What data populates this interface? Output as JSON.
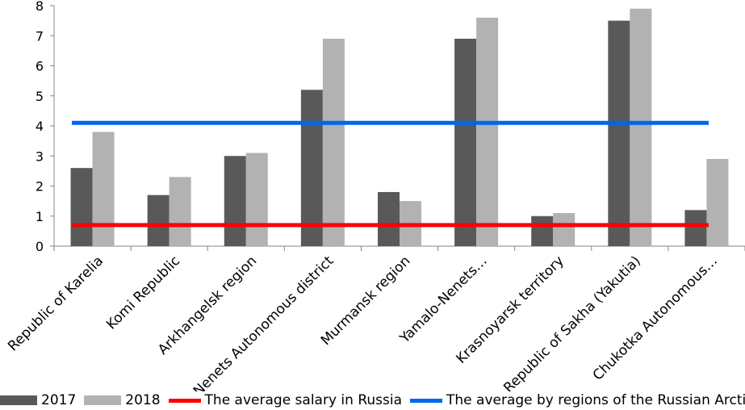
{
  "chart_data": {
    "type": "bar",
    "title": "",
    "xlabel": "",
    "ylabel": "",
    "ylim": [
      0,
      8
    ],
    "yticks": [
      0,
      1,
      2,
      3,
      4,
      5,
      6,
      7,
      8
    ],
    "grid": false,
    "categories": [
      "Republic of Karelia",
      "Komi Republic",
      "Arkhangelsk region",
      "Nenets Autonomous district",
      "Murmansk region",
      "Yamalo-Nenets…",
      "Krasnoyarsk territory",
      "Republic of Sakha (Yakutia)",
      "Chukotka Autonomous…"
    ],
    "series": [
      {
        "name": "2017",
        "color": "#595959",
        "values": [
          2.6,
          1.7,
          3.0,
          5.2,
          1.8,
          6.9,
          1.0,
          7.5,
          1.2
        ]
      },
      {
        "name": "2018",
        "color": "#b2b2b2",
        "values": [
          3.8,
          2.3,
          3.1,
          6.9,
          1.5,
          7.6,
          1.1,
          7.9,
          2.9
        ]
      }
    ],
    "lines": [
      {
        "name": "The average salary in Russia",
        "color": "#ff0000",
        "value": 0.7
      },
      {
        "name": "The average by regions of the Russian Arctic",
        "color": "#0066ee",
        "value": 4.1
      }
    ],
    "legend_position": "bottom"
  }
}
